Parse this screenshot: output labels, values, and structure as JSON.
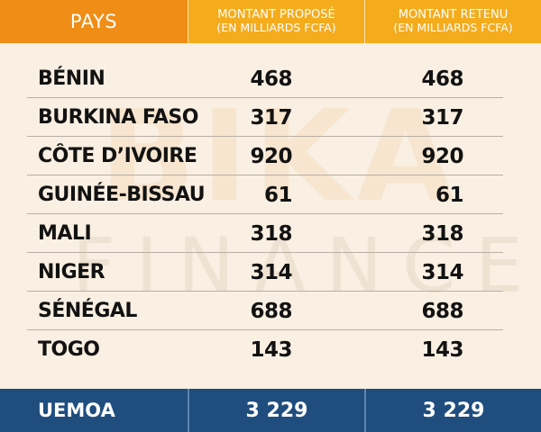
{
  "header": {
    "pays": "PAYS",
    "proposed_line1": "MONTANT PROPOSÉ",
    "proposed_line2": "(EN MILLIARDS FCFA)",
    "retained_line1": "MONTANT RETENU",
    "retained_line2": "(EN MILLIARDS FCFA)"
  },
  "rows": [
    {
      "pays": "BÉNIN",
      "propose": "468",
      "retenu": "468"
    },
    {
      "pays": "BURKINA FASO",
      "propose": "317",
      "retenu": "317"
    },
    {
      "pays": "CÔTE D’IVOIRE",
      "propose": "920",
      "retenu": "920"
    },
    {
      "pays": "GUINÉE-BISSAU",
      "propose": "61",
      "retenu": "61"
    },
    {
      "pays": "MALI",
      "propose": "318",
      "retenu": "318"
    },
    {
      "pays": "NIGER",
      "propose": "314",
      "retenu": "314"
    },
    {
      "pays": "SÉNÉGAL",
      "propose": "688",
      "retenu": "688"
    },
    {
      "pays": "TOGO",
      "propose": "143",
      "retenu": "143"
    }
  ],
  "total": {
    "pays": "UEMOA",
    "propose": "3 229",
    "retenu": "3 229"
  },
  "watermark": {
    "line1": "BIKA",
    "line2": "FINANCE"
  },
  "colors": {
    "header_pays": "#ef8d16",
    "header_amounts": "#f4ac1d",
    "background": "#f9efe2",
    "footer": "#1f4d7e"
  }
}
